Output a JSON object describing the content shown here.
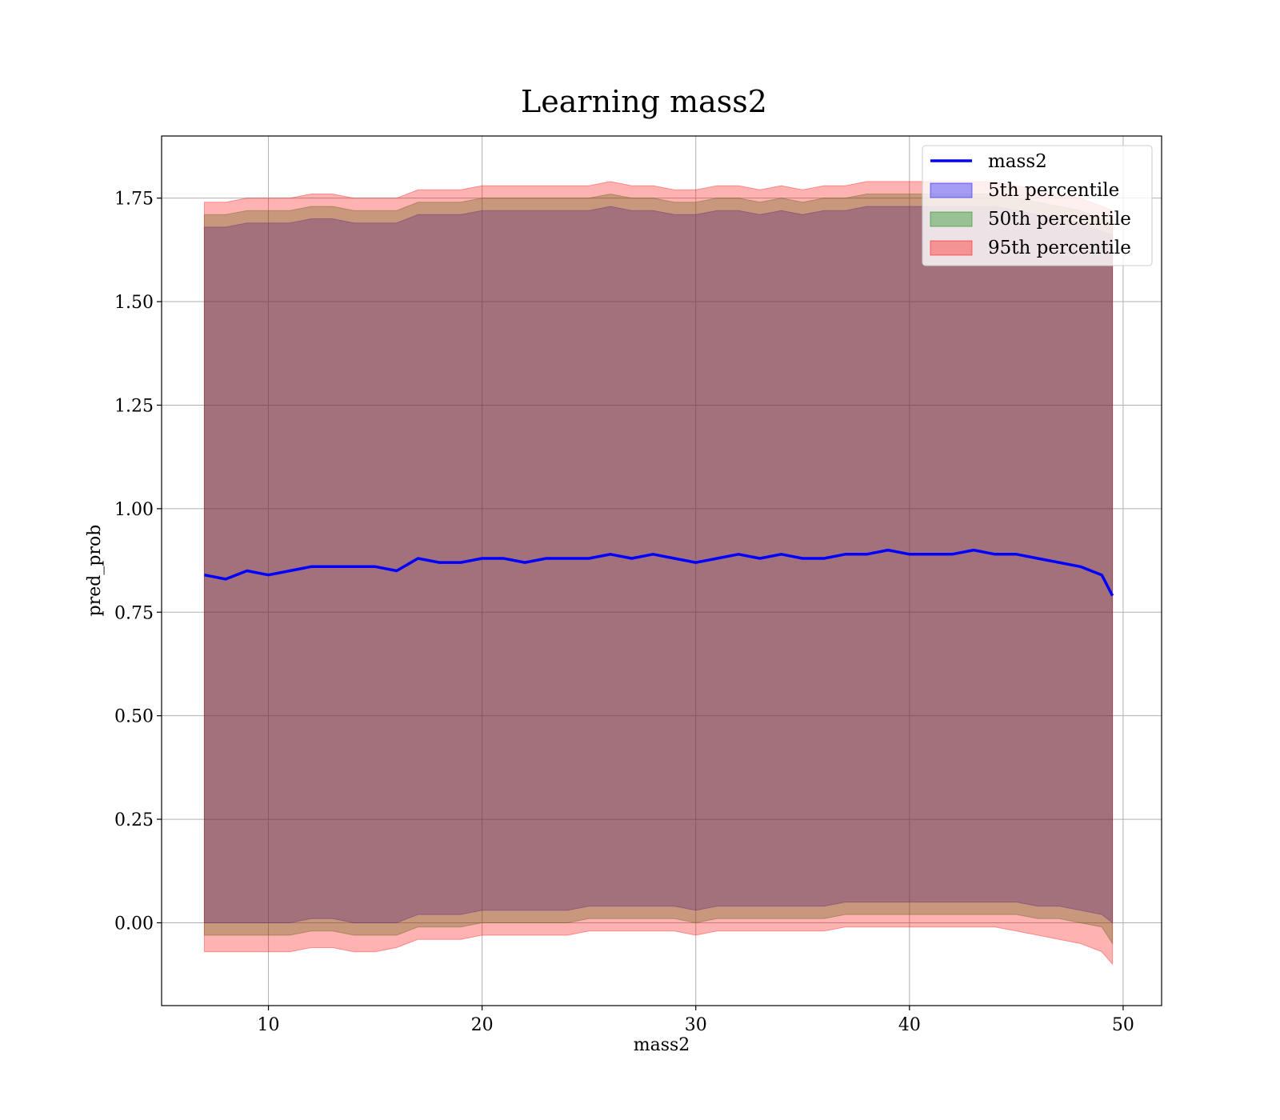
{
  "chart_data": {
    "type": "line",
    "title": "Learning mass2",
    "xlabel": "mass2",
    "ylabel": "pred_prob",
    "xlim": [
      5,
      51.8
    ],
    "ylim": [
      -0.2,
      1.9
    ],
    "xticks": [
      10,
      20,
      30,
      40,
      50
    ],
    "xtick_labels": [
      "10",
      "20",
      "30",
      "40",
      "50"
    ],
    "yticks": [
      0.0,
      0.25,
      0.5,
      0.75,
      1.0,
      1.25,
      1.5,
      1.75
    ],
    "ytick_labels": [
      "0.00",
      "0.25",
      "0.50",
      "0.75",
      "1.00",
      "1.25",
      "1.50",
      "1.75"
    ],
    "grid": true,
    "legend_position": "top-right",
    "x": [
      7.0,
      8.0,
      9.0,
      10.0,
      11.0,
      12.0,
      13.0,
      14.0,
      15.0,
      16.0,
      17.0,
      18.0,
      19.0,
      20.0,
      21.0,
      22.0,
      23.0,
      24.0,
      25.0,
      26.0,
      27.0,
      28.0,
      29.0,
      30.0,
      31.0,
      32.0,
      33.0,
      34.0,
      35.0,
      36.0,
      37.0,
      38.0,
      39.0,
      40.0,
      41.0,
      42.0,
      43.0,
      44.0,
      45.0,
      46.0,
      47.0,
      48.0,
      49.0,
      49.5
    ],
    "series": [
      {
        "name": "mass2",
        "kind": "line",
        "color": "#0000ff",
        "values": [
          0.84,
          0.83,
          0.85,
          0.84,
          0.85,
          0.86,
          0.86,
          0.86,
          0.86,
          0.85,
          0.88,
          0.87,
          0.87,
          0.88,
          0.88,
          0.87,
          0.88,
          0.88,
          0.88,
          0.89,
          0.88,
          0.89,
          0.88,
          0.87,
          0.88,
          0.89,
          0.88,
          0.89,
          0.88,
          0.88,
          0.89,
          0.89,
          0.9,
          0.89,
          0.89,
          0.89,
          0.9,
          0.89,
          0.89,
          0.88,
          0.87,
          0.86,
          0.84,
          0.79
        ]
      },
      {
        "name": "5th percentile",
        "kind": "band",
        "color": "#0000ff",
        "lower": [
          0.0,
          0.0,
          0.0,
          0.0,
          0.0,
          0.01,
          0.01,
          0.0,
          0.0,
          0.0,
          0.02,
          0.02,
          0.02,
          0.03,
          0.03,
          0.03,
          0.03,
          0.03,
          0.04,
          0.04,
          0.04,
          0.04,
          0.04,
          0.03,
          0.04,
          0.04,
          0.04,
          0.04,
          0.04,
          0.04,
          0.05,
          0.05,
          0.05,
          0.05,
          0.05,
          0.05,
          0.05,
          0.05,
          0.05,
          0.04,
          0.04,
          0.03,
          0.02,
          0.0
        ],
        "upper": [
          1.68,
          1.68,
          1.69,
          1.69,
          1.69,
          1.7,
          1.7,
          1.69,
          1.69,
          1.69,
          1.71,
          1.71,
          1.71,
          1.72,
          1.72,
          1.72,
          1.72,
          1.72,
          1.72,
          1.73,
          1.72,
          1.72,
          1.71,
          1.71,
          1.72,
          1.72,
          1.71,
          1.72,
          1.71,
          1.72,
          1.72,
          1.73,
          1.73,
          1.73,
          1.73,
          1.73,
          1.73,
          1.73,
          1.72,
          1.71,
          1.7,
          1.69,
          1.67,
          1.66
        ]
      },
      {
        "name": "50th percentile",
        "kind": "band",
        "color": "#008000",
        "lower": [
          -0.03,
          -0.03,
          -0.03,
          -0.03,
          -0.03,
          -0.02,
          -0.02,
          -0.03,
          -0.03,
          -0.03,
          -0.01,
          -0.01,
          -0.01,
          0.0,
          0.0,
          0.0,
          0.0,
          0.0,
          0.01,
          0.01,
          0.01,
          0.01,
          0.01,
          0.0,
          0.01,
          0.01,
          0.01,
          0.01,
          0.01,
          0.01,
          0.02,
          0.02,
          0.02,
          0.02,
          0.02,
          0.02,
          0.02,
          0.02,
          0.02,
          0.01,
          0.01,
          0.0,
          -0.01,
          -0.05
        ],
        "upper": [
          1.71,
          1.71,
          1.72,
          1.72,
          1.72,
          1.73,
          1.73,
          1.72,
          1.72,
          1.72,
          1.74,
          1.74,
          1.74,
          1.75,
          1.75,
          1.75,
          1.75,
          1.75,
          1.75,
          1.76,
          1.75,
          1.75,
          1.74,
          1.74,
          1.75,
          1.75,
          1.74,
          1.75,
          1.74,
          1.75,
          1.75,
          1.76,
          1.76,
          1.76,
          1.76,
          1.76,
          1.76,
          1.76,
          1.75,
          1.74,
          1.73,
          1.72,
          1.7,
          1.69
        ]
      },
      {
        "name": "95th percentile",
        "kind": "band",
        "color": "#ff0000",
        "lower": [
          -0.07,
          -0.07,
          -0.07,
          -0.07,
          -0.07,
          -0.06,
          -0.06,
          -0.07,
          -0.07,
          -0.06,
          -0.04,
          -0.04,
          -0.04,
          -0.03,
          -0.03,
          -0.03,
          -0.03,
          -0.03,
          -0.02,
          -0.02,
          -0.02,
          -0.02,
          -0.02,
          -0.03,
          -0.02,
          -0.02,
          -0.02,
          -0.02,
          -0.02,
          -0.02,
          -0.01,
          -0.01,
          -0.01,
          -0.01,
          -0.01,
          -0.01,
          -0.01,
          -0.01,
          -0.02,
          -0.03,
          -0.04,
          -0.05,
          -0.07,
          -0.1
        ],
        "upper": [
          1.74,
          1.74,
          1.75,
          1.75,
          1.75,
          1.76,
          1.76,
          1.75,
          1.75,
          1.75,
          1.77,
          1.77,
          1.77,
          1.78,
          1.78,
          1.78,
          1.78,
          1.78,
          1.78,
          1.79,
          1.78,
          1.78,
          1.77,
          1.77,
          1.78,
          1.78,
          1.77,
          1.78,
          1.77,
          1.78,
          1.78,
          1.79,
          1.79,
          1.79,
          1.79,
          1.79,
          1.79,
          1.79,
          1.78,
          1.77,
          1.76,
          1.75,
          1.73,
          1.72
        ]
      }
    ]
  },
  "colors": {
    "band_5th": "#0000ff",
    "band_50th": "#008000",
    "band_95th": "#ff0000",
    "line": "#0000ff",
    "grid": "#b0b0b0"
  }
}
